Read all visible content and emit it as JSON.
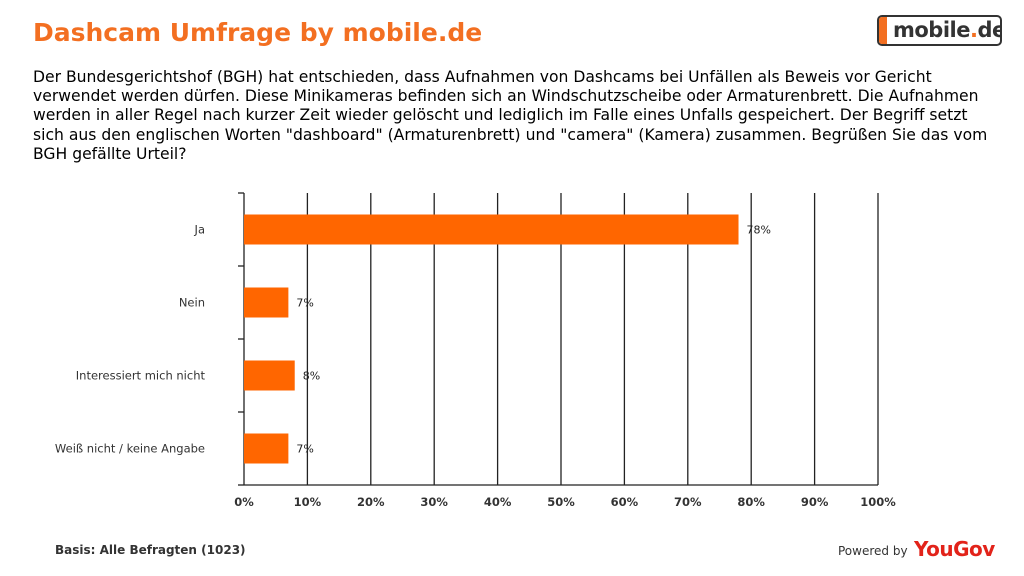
{
  "header": {
    "title": "Dashcam Umfrage by mobile.de",
    "logo_text_main": "mobile",
    "logo_text_dot": ".",
    "logo_text_tld": "de"
  },
  "intro": {
    "text": "Der Bundesgerichtshof (BGH) hat entschieden, dass Aufnahmen von Dashcams bei Unfällen als Beweis vor Gericht verwendet werden dürfen.  Diese Minikameras befinden sich an Windschutzscheibe oder Armaturenbrett. Die Aufnahmen werden in aller Regel nach kurzer Zeit wieder gelöscht und lediglich im Falle eines Unfalls gespeichert. Der Begriff setzt sich aus den englischen Worten \"dashboard\" (Armaturenbrett) und \"camera\" (Kamera) zusammen. Begrüßen Sie das vom BGH gefällte Urteil?"
  },
  "chart_data": {
    "type": "bar",
    "orientation": "horizontal",
    "categories": [
      "Ja",
      "Nein",
      "Interessiert mich nicht",
      "Weiß nicht / keine Angabe"
    ],
    "values": [
      78,
      7,
      8,
      7
    ],
    "data_labels": [
      "78%",
      "7%",
      "8%",
      "7%"
    ],
    "xlim": [
      0,
      100
    ],
    "xticks": [
      "0%",
      "10%",
      "20%",
      "30%",
      "40%",
      "50%",
      "60%",
      "70%",
      "80%",
      "90%",
      "100%"
    ],
    "grid": true,
    "bar_color": "#ff6600"
  },
  "footer": {
    "basis": "Basis: Alle Befragten (1023)",
    "powered_by": "Powered by",
    "brand": "YouGov"
  }
}
